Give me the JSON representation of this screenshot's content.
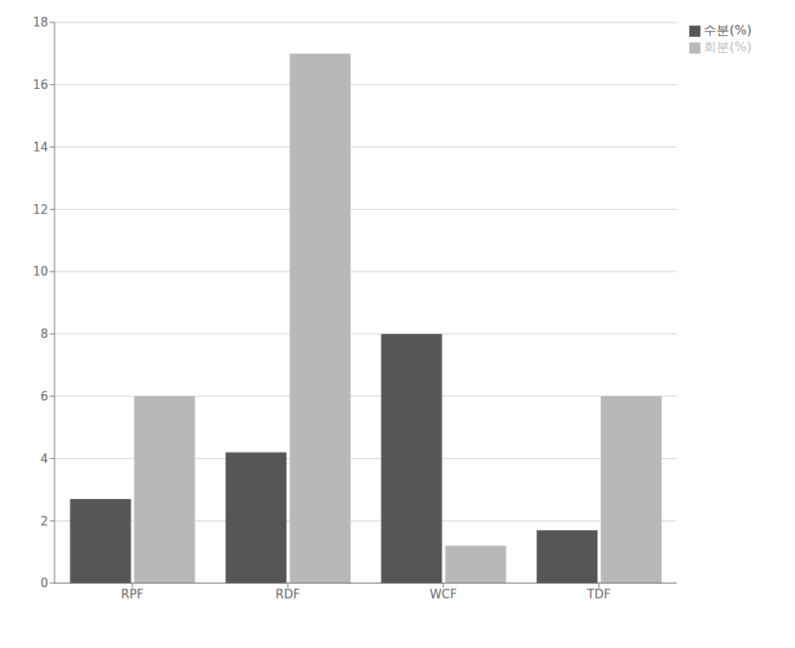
{
  "chart_data": {
    "type": "bar",
    "categories": [
      "RPF",
      "RDF",
      "WCF",
      "TDF"
    ],
    "series": [
      {
        "name": "수분(%)",
        "color": "#565656",
        "values": [
          2.7,
          4.2,
          8.0,
          1.7
        ]
      },
      {
        "name": "회분(%)",
        "color": "#b8b8b8",
        "values": [
          6.0,
          17.0,
          1.2,
          6.0
        ]
      }
    ],
    "ylim": [
      0,
      18
    ],
    "yticks": [
      0,
      2,
      4,
      6,
      8,
      10,
      12,
      14,
      16,
      18
    ],
    "grid": true,
    "legend": "upper right"
  }
}
